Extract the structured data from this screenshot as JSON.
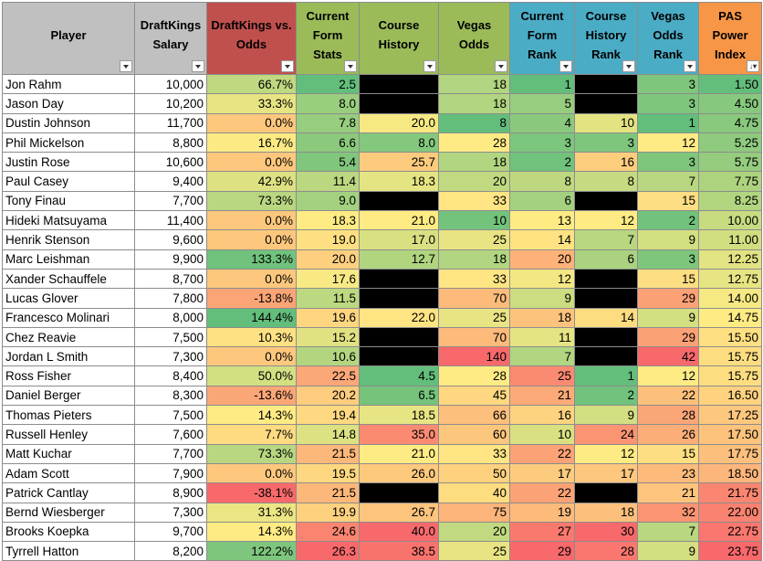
{
  "colors": {
    "header_player": "#c0c0c0",
    "header_salary": "#c0c0c0",
    "header_dk_vs_odds": "#c0504d",
    "header_stats": "#9bbb59",
    "header_ranks": "#4bacc6",
    "header_index": "#f79646",
    "missing_cell": "#000000",
    "scale_good": "#63be7b",
    "scale_mid": "#ffeb84",
    "scale_bad": "#f8696b"
  },
  "headers": [
    {
      "key": "player",
      "label": "Player",
      "sort_icon": "filter-dropdown-icon"
    },
    {
      "key": "salary",
      "label": "DraftKings Salary",
      "sort_icon": "filter-dropdown-icon"
    },
    {
      "key": "dk_vs_odds",
      "label": "DraftKings vs. Odds",
      "sort_icon": "filter-dropdown-icon"
    },
    {
      "key": "form_stats",
      "label": "Current Form Stats",
      "sort_icon": "filter-dropdown-icon"
    },
    {
      "key": "course_history",
      "label": "Course History",
      "sort_icon": "filter-dropdown-icon"
    },
    {
      "key": "vegas_odds",
      "label": "Vegas Odds",
      "sort_icon": "filter-dropdown-icon"
    },
    {
      "key": "form_rank",
      "label": "Current Form Rank",
      "sort_icon": "filter-dropdown-icon"
    },
    {
      "key": "history_rank",
      "label": "Course History Rank",
      "sort_icon": "filter-dropdown-icon"
    },
    {
      "key": "odds_rank",
      "label": "Vegas Odds Rank",
      "sort_icon": "filter-dropdown-icon"
    },
    {
      "key": "pas_index",
      "label": "PAS Power Index",
      "sort_icon": "sort-ascending-icon"
    }
  ],
  "rows": [
    {
      "player": "Jon Rahm",
      "salary": "10,000",
      "dk_vs_odds": "66.7%",
      "form_stats": "2.5",
      "course_history": "",
      "vegas_odds": "18",
      "form_rank": "1",
      "history_rank": "",
      "odds_rank": "3",
      "pas_index": "1.50"
    },
    {
      "player": "Jason Day",
      "salary": "10,200",
      "dk_vs_odds": "33.3%",
      "form_stats": "8.0",
      "course_history": "",
      "vegas_odds": "18",
      "form_rank": "5",
      "history_rank": "",
      "odds_rank": "3",
      "pas_index": "4.50"
    },
    {
      "player": "Dustin Johnson",
      "salary": "11,700",
      "dk_vs_odds": "0.0%",
      "form_stats": "7.8",
      "course_history": "20.0",
      "vegas_odds": "8",
      "form_rank": "4",
      "history_rank": "10",
      "odds_rank": "1",
      "pas_index": "4.75"
    },
    {
      "player": "Phil Mickelson",
      "salary": "8,800",
      "dk_vs_odds": "16.7%",
      "form_stats": "6.6",
      "course_history": "8.0",
      "vegas_odds": "28",
      "form_rank": "3",
      "history_rank": "3",
      "odds_rank": "12",
      "pas_index": "5.25"
    },
    {
      "player": "Justin Rose",
      "salary": "10,600",
      "dk_vs_odds": "0.0%",
      "form_stats": "5.4",
      "course_history": "25.7",
      "vegas_odds": "18",
      "form_rank": "2",
      "history_rank": "16",
      "odds_rank": "3",
      "pas_index": "5.75"
    },
    {
      "player": "Paul Casey",
      "salary": "9,400",
      "dk_vs_odds": "42.9%",
      "form_stats": "11.4",
      "course_history": "18.3",
      "vegas_odds": "20",
      "form_rank": "8",
      "history_rank": "8",
      "odds_rank": "7",
      "pas_index": "7.75"
    },
    {
      "player": "Tony Finau",
      "salary": "7,700",
      "dk_vs_odds": "73.3%",
      "form_stats": "9.0",
      "course_history": "",
      "vegas_odds": "33",
      "form_rank": "6",
      "history_rank": "",
      "odds_rank": "15",
      "pas_index": "8.25"
    },
    {
      "player": "Hideki Matsuyama",
      "salary": "11,400",
      "dk_vs_odds": "0.0%",
      "form_stats": "18.3",
      "course_history": "21.0",
      "vegas_odds": "10",
      "form_rank": "13",
      "history_rank": "12",
      "odds_rank": "2",
      "pas_index": "10.00"
    },
    {
      "player": "Henrik Stenson",
      "salary": "9,600",
      "dk_vs_odds": "0.0%",
      "form_stats": "19.0",
      "course_history": "17.0",
      "vegas_odds": "25",
      "form_rank": "14",
      "history_rank": "7",
      "odds_rank": "9",
      "pas_index": "11.00"
    },
    {
      "player": "Marc Leishman",
      "salary": "9,900",
      "dk_vs_odds": "133.3%",
      "form_stats": "20.0",
      "course_history": "12.7",
      "vegas_odds": "18",
      "form_rank": "20",
      "history_rank": "6",
      "odds_rank": "3",
      "pas_index": "12.25"
    },
    {
      "player": "Xander Schauffele",
      "salary": "8,700",
      "dk_vs_odds": "0.0%",
      "form_stats": "17.6",
      "course_history": "",
      "vegas_odds": "33",
      "form_rank": "12",
      "history_rank": "",
      "odds_rank": "15",
      "pas_index": "12.75"
    },
    {
      "player": "Lucas Glover",
      "salary": "7,800",
      "dk_vs_odds": "-13.8%",
      "form_stats": "11.5",
      "course_history": "",
      "vegas_odds": "70",
      "form_rank": "9",
      "history_rank": "",
      "odds_rank": "29",
      "pas_index": "14.00"
    },
    {
      "player": "Francesco Molinari",
      "salary": "8,000",
      "dk_vs_odds": "144.4%",
      "form_stats": "19.6",
      "course_history": "22.0",
      "vegas_odds": "25",
      "form_rank": "18",
      "history_rank": "14",
      "odds_rank": "9",
      "pas_index": "14.75"
    },
    {
      "player": "Chez Reavie",
      "salary": "7,500",
      "dk_vs_odds": "10.3%",
      "form_stats": "15.2",
      "course_history": "",
      "vegas_odds": "70",
      "form_rank": "11",
      "history_rank": "",
      "odds_rank": "29",
      "pas_index": "15.50"
    },
    {
      "player": "Jordan L Smith",
      "salary": "7,300",
      "dk_vs_odds": "0.0%",
      "form_stats": "10.6",
      "course_history": "",
      "vegas_odds": "140",
      "form_rank": "7",
      "history_rank": "",
      "odds_rank": "42",
      "pas_index": "15.75"
    },
    {
      "player": "Ross Fisher",
      "salary": "8,400",
      "dk_vs_odds": "50.0%",
      "form_stats": "22.5",
      "course_history": "4.5",
      "vegas_odds": "28",
      "form_rank": "25",
      "history_rank": "1",
      "odds_rank": "12",
      "pas_index": "15.75"
    },
    {
      "player": "Daniel Berger",
      "salary": "8,300",
      "dk_vs_odds": "-13.6%",
      "form_stats": "20.2",
      "course_history": "6.5",
      "vegas_odds": "45",
      "form_rank": "21",
      "history_rank": "2",
      "odds_rank": "22",
      "pas_index": "16.50"
    },
    {
      "player": "Thomas Pieters",
      "salary": "7,500",
      "dk_vs_odds": "14.3%",
      "form_stats": "19.4",
      "course_history": "18.5",
      "vegas_odds": "66",
      "form_rank": "16",
      "history_rank": "9",
      "odds_rank": "28",
      "pas_index": "17.25"
    },
    {
      "player": "Russell Henley",
      "salary": "7,600",
      "dk_vs_odds": "7.7%",
      "form_stats": "14.8",
      "course_history": "35.0",
      "vegas_odds": "60",
      "form_rank": "10",
      "history_rank": "24",
      "odds_rank": "26",
      "pas_index": "17.50"
    },
    {
      "player": "Matt Kuchar",
      "salary": "7,700",
      "dk_vs_odds": "73.3%",
      "form_stats": "21.5",
      "course_history": "21.0",
      "vegas_odds": "33",
      "form_rank": "22",
      "history_rank": "12",
      "odds_rank": "15",
      "pas_index": "17.75"
    },
    {
      "player": "Adam Scott",
      "salary": "7,900",
      "dk_vs_odds": "0.0%",
      "form_stats": "19.5",
      "course_history": "26.0",
      "vegas_odds": "50",
      "form_rank": "17",
      "history_rank": "17",
      "odds_rank": "23",
      "pas_index": "18.50"
    },
    {
      "player": "Patrick Cantlay",
      "salary": "8,900",
      "dk_vs_odds": "-38.1%",
      "form_stats": "21.5",
      "course_history": "",
      "vegas_odds": "40",
      "form_rank": "22",
      "history_rank": "",
      "odds_rank": "21",
      "pas_index": "21.75"
    },
    {
      "player": "Bernd Wiesberger",
      "salary": "7,300",
      "dk_vs_odds": "31.3%",
      "form_stats": "19.9",
      "course_history": "26.7",
      "vegas_odds": "75",
      "form_rank": "19",
      "history_rank": "18",
      "odds_rank": "32",
      "pas_index": "22.00"
    },
    {
      "player": "Brooks Koepka",
      "salary": "9,700",
      "dk_vs_odds": "14.3%",
      "form_stats": "24.6",
      "course_history": "40.0",
      "vegas_odds": "20",
      "form_rank": "27",
      "history_rank": "30",
      "odds_rank": "7",
      "pas_index": "22.75"
    },
    {
      "player": "Tyrrell Hatton",
      "salary": "8,200",
      "dk_vs_odds": "122.2%",
      "form_stats": "26.3",
      "course_history": "38.5",
      "vegas_odds": "25",
      "form_rank": "29",
      "history_rank": "28",
      "odds_rank": "9",
      "pas_index": "23.75"
    }
  ]
}
